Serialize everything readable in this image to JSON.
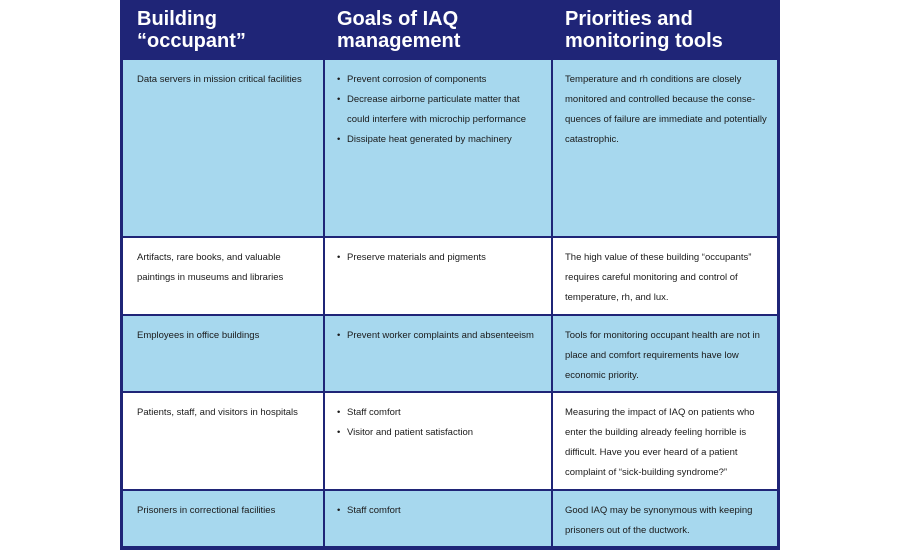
{
  "headers": [
    "Building “occupant”",
    "Goals of IAQ management",
    "Priorities and monitoring tools"
  ],
  "rows": [
    {
      "occupant": "Data servers in mission critical facilities",
      "goals": [
        "Prevent corrosion of components",
        "Decrease airborne particulate matter that could interfere with microchip performance",
        "Dissipate heat generated by machinery"
      ],
      "priorities": "Temperature and rh conditions are closely monitored and controlled because the conse-quences of failure are immediate and potentially catastrophic."
    },
    {
      "occupant": "Artifacts, rare books, and valuable paintings in museums and libraries",
      "goals": [
        "Preserve materials and pigments"
      ],
      "priorities": "The high value of these building “occupants” requires careful monitoring and control of temperature, rh, and lux."
    },
    {
      "occupant": "Employees in office buildings",
      "goals": [
        "Prevent worker complaints and absenteeism"
      ],
      "priorities": "Tools for monitoring occupant health are not in place and comfort requirements have low economic priority."
    },
    {
      "occupant": "Patients, staff, and visitors in hospitals",
      "goals": [
        "Staff comfort",
        "Visitor and patient satisfaction"
      ],
      "priorities": "Measuring the impact of IAQ on patients who enter the building already feeling horrible is difficult. Have you ever heard of a patient complaint of “sick-building syndrome?”"
    },
    {
      "occupant": "Prisoners in correctional facilities",
      "goals": [
        "Staff comfort"
      ],
      "priorities": "Good IAQ may be synonymous with keeping prisoners out of the ductwork."
    }
  ],
  "colors": {
    "header_bg": "#1f2577",
    "row_blue": "#a7d8ee",
    "row_white": "#ffffff"
  }
}
